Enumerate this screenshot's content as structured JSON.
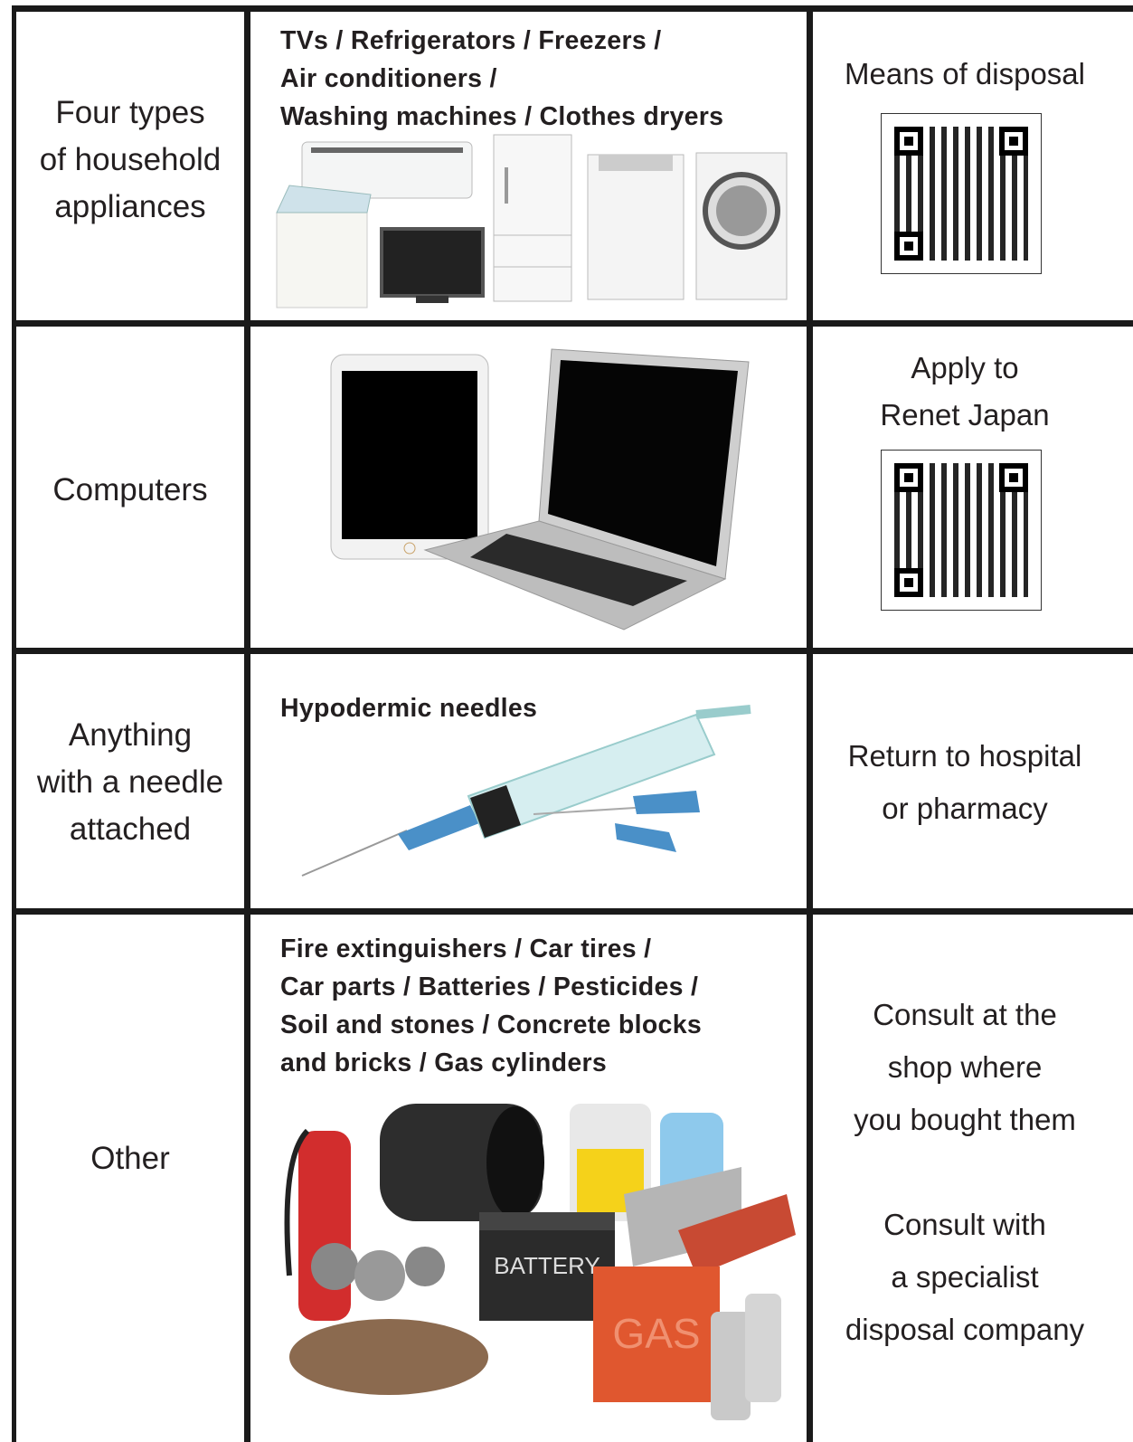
{
  "table": {
    "rows": [
      {
        "category": [
          "Four types",
          "of household",
          "appliances"
        ],
        "items": [
          "TVs / Refrigerators / Freezers /",
          "Air conditioners /",
          "Washing machines / Clothes dryers"
        ],
        "disposal": [
          "Means of disposal"
        ]
      },
      {
        "category": [
          "Computers"
        ],
        "disposal": [
          "Apply to",
          "Renet Japan"
        ]
      },
      {
        "category": [
          "Anything",
          "with a needle",
          "attached"
        ],
        "items": [
          "Hypodermic needles"
        ],
        "disposal": [
          "Return to hospital",
          "or pharmacy"
        ]
      },
      {
        "category": [
          "Other"
        ],
        "items": [
          "Fire extinguishers / Car tires /",
          "Car parts / Batteries / Pesticides /",
          "Soil and stones / Concrete blocks",
          "and bricks / Gas cylinders"
        ],
        "disposal": [
          "Consult at the",
          "shop where",
          "you bought them",
          "Consult with",
          "a specialist",
          "disposal company"
        ]
      }
    ]
  },
  "illustrations": {
    "battery_label": "BATTERY",
    "gas_label": "GAS"
  }
}
